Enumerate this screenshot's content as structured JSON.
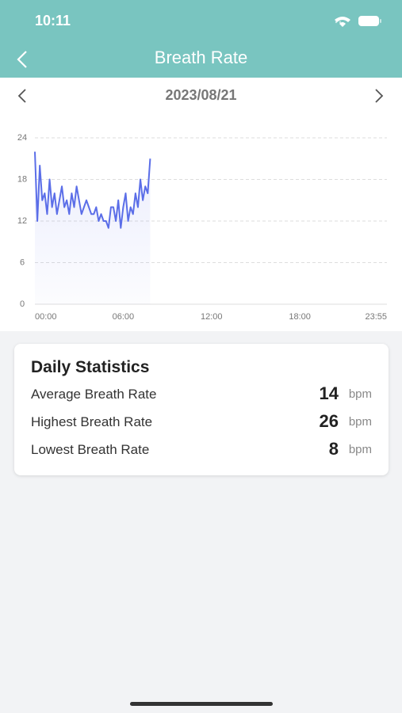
{
  "status_bar": {
    "time": "10:11"
  },
  "header": {
    "title": "Breath Rate"
  },
  "date": "2023/08/21",
  "chart_data": {
    "type": "line",
    "x": [
      0,
      10,
      20,
      30,
      40,
      50,
      60,
      70,
      80,
      90,
      100,
      110,
      120,
      130,
      140,
      150,
      160,
      170,
      180,
      190,
      200,
      210,
      220,
      230,
      240,
      250,
      260,
      270,
      280,
      290,
      300,
      310,
      320,
      330,
      340,
      350,
      360,
      370,
      380,
      390,
      400,
      410,
      420,
      430,
      440,
      450,
      460,
      470
    ],
    "series": [
      {
        "name": "Breath Rate",
        "color": "#5b6ee8",
        "values": [
          22,
          12,
          20,
          15,
          16,
          13,
          18,
          14,
          16,
          13,
          15,
          17,
          14,
          15,
          13,
          16,
          14,
          17,
          15,
          13,
          14,
          15,
          14,
          13,
          13,
          14,
          12,
          13,
          12,
          12,
          11,
          14,
          14,
          12,
          15,
          11,
          14,
          16,
          12,
          14,
          13,
          16,
          14,
          18,
          15,
          17,
          16,
          21
        ]
      }
    ],
    "xlim": [
      0,
      1435
    ],
    "xticks": [
      {
        "value": 0,
        "label": "00:00"
      },
      {
        "value": 360,
        "label": "06:00"
      },
      {
        "value": 720,
        "label": "12:00"
      },
      {
        "value": 1080,
        "label": "18:00"
      },
      {
        "value": 1435,
        "label": "23:55"
      }
    ],
    "ylim": [
      0,
      24
    ],
    "yticks": [
      0,
      6,
      12,
      18,
      24
    ],
    "grid": true
  },
  "statistics": {
    "title": "Daily Statistics",
    "rows": [
      {
        "label": "Average Breath Rate",
        "value": "14",
        "unit": "bpm"
      },
      {
        "label": "Highest Breath Rate",
        "value": "26",
        "unit": "bpm"
      },
      {
        "label": "Lowest Breath Rate",
        "value": "8",
        "unit": "bpm"
      }
    ]
  }
}
